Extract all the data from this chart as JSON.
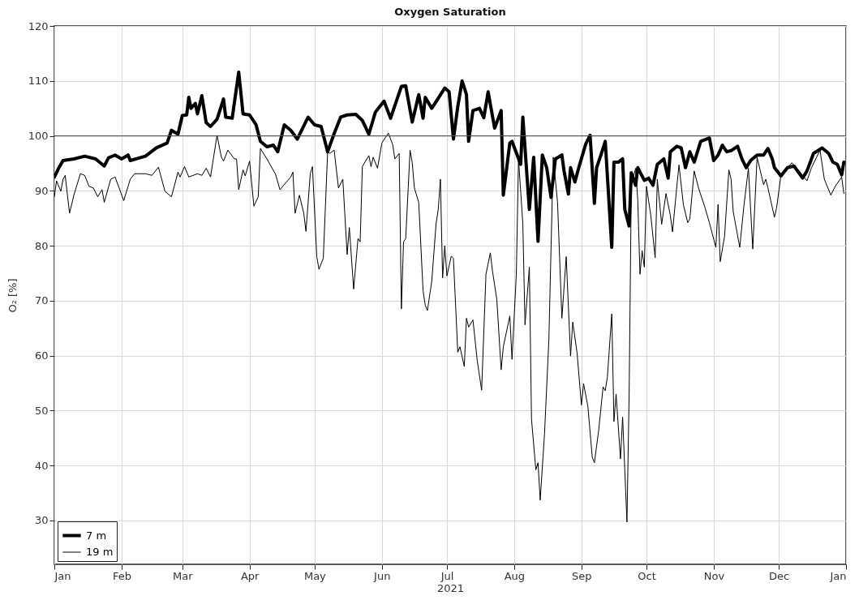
{
  "chart_data": {
    "type": "line",
    "title": "Oxygen Saturation",
    "xlabel": "2021",
    "ylabel": "O₂ [%]",
    "ylim": [
      22,
      120
    ],
    "yticks": [
      30,
      40,
      50,
      60,
      70,
      80,
      90,
      100,
      110,
      120
    ],
    "xlim": [
      "2021-01-01",
      "2022-01-01"
    ],
    "xticks": [
      {
        "value": "2021-01-01",
        "label": "Jan"
      },
      {
        "value": "2021-02-01",
        "label": "Feb"
      },
      {
        "value": "2021-03-01",
        "label": "Mar"
      },
      {
        "value": "2021-04-01",
        "label": "Apr"
      },
      {
        "value": "2021-05-01",
        "label": "May"
      },
      {
        "value": "2021-06-01",
        "label": "Jun"
      },
      {
        "value": "2021-07-01",
        "label": "Jul"
      },
      {
        "value": "2021-08-01",
        "label": "Aug"
      },
      {
        "value": "2021-09-01",
        "label": "Sep"
      },
      {
        "value": "2021-10-01",
        "label": "Oct"
      },
      {
        "value": "2021-11-01",
        "label": "Nov"
      },
      {
        "value": "2021-12-01",
        "label": "Dec"
      },
      {
        "value": "2022-01-01",
        "label": "Jan"
      }
    ],
    "grid": true,
    "legend": "bottom left",
    "line_style": "solid",
    "ref_lines": [
      {
        "axis": "y",
        "value": 100,
        "color": "#555555"
      }
    ],
    "series": [
      {
        "name": "7 m",
        "color": "#000000",
        "x": [
          "2021-01-01",
          "2021-01-03",
          "2021-01-05",
          "2021-01-10",
          "2021-01-15",
          "2021-01-20",
          "2021-01-24",
          "2021-01-26",
          "2021-01-29",
          "2021-02-01",
          "2021-02-04",
          "2021-02-05",
          "2021-02-12",
          "2021-02-17",
          "2021-02-22",
          "2021-02-24",
          "2021-02-27",
          "2021-03-01",
          "2021-03-03",
          "2021-03-04",
          "2021-03-05",
          "2021-03-07",
          "2021-03-08",
          "2021-03-10",
          "2021-03-12",
          "2021-03-14",
          "2021-03-17",
          "2021-03-20",
          "2021-03-21",
          "2021-03-24",
          "2021-03-27",
          "2021-03-29",
          "2021-04-01",
          "2021-04-04",
          "2021-04-06",
          "2021-04-09",
          "2021-04-12",
          "2021-04-14",
          "2021-04-17",
          "2021-04-20",
          "2021-04-23",
          "2021-04-28",
          "2021-05-01",
          "2021-05-04",
          "2021-05-07",
          "2021-05-10",
          "2021-05-13",
          "2021-05-16",
          "2021-05-20",
          "2021-05-23",
          "2021-05-26",
          "2021-05-29",
          "2021-05-31",
          "2021-06-02",
          "2021-06-05",
          "2021-06-10",
          "2021-06-12",
          "2021-06-15",
          "2021-06-18",
          "2021-06-20",
          "2021-06-21",
          "2021-06-24",
          "2021-06-30",
          "2021-07-02",
          "2021-07-04",
          "2021-07-06",
          "2021-07-08",
          "2021-07-10",
          "2021-07-11",
          "2021-07-13",
          "2021-07-16",
          "2021-07-18",
          "2021-07-20",
          "2021-07-23",
          "2021-07-26",
          "2021-07-27",
          "2021-07-30",
          "2021-07-31",
          "2021-08-04",
          "2021-08-05",
          "2021-08-08",
          "2021-08-10",
          "2021-08-12",
          "2021-08-14",
          "2021-08-16",
          "2021-08-18",
          "2021-08-20",
          "2021-08-23",
          "2021-08-24",
          "2021-08-26",
          "2021-08-27",
          "2021-08-29",
          "2021-08-31",
          "2021-09-03",
          "2021-09-05",
          "2021-09-07",
          "2021-09-08",
          "2021-09-10",
          "2021-09-12",
          "2021-09-15",
          "2021-09-16",
          "2021-09-18",
          "2021-09-20",
          "2021-09-21",
          "2021-09-23",
          "2021-09-24",
          "2021-09-26",
          "2021-09-27",
          "2021-09-30",
          "2021-10-02",
          "2021-10-04",
          "2021-10-06",
          "2021-10-09",
          "2021-10-11",
          "2021-10-12",
          "2021-10-15",
          "2021-10-17",
          "2021-10-19",
          "2021-10-21",
          "2021-10-23",
          "2021-10-26",
          "2021-10-30",
          "2021-11-01",
          "2021-11-03",
          "2021-11-05",
          "2021-11-07",
          "2021-11-09",
          "2021-11-12",
          "2021-11-14",
          "2021-11-16",
          "2021-11-18",
          "2021-11-21",
          "2021-11-24",
          "2021-11-26",
          "2021-11-28",
          "2021-11-29",
          "2021-12-02",
          "2021-12-05",
          "2021-12-08",
          "2021-12-12",
          "2021-12-14",
          "2021-12-17",
          "2021-12-21",
          "2021-12-24",
          "2021-12-26",
          "2021-12-28",
          "2021-12-30",
          "2021-12-31"
        ],
        "values": [
          92.5,
          94.1,
          95.5,
          95.8,
          96.3,
          95.8,
          94.5,
          96,
          96.5,
          95.8,
          96.5,
          95.5,
          96.3,
          97.8,
          98.7,
          101,
          100.3,
          103.7,
          103.8,
          107,
          105,
          105.9,
          104,
          107.3,
          102.4,
          101.7,
          103,
          106.7,
          103.4,
          103.2,
          111.6,
          104,
          103.8,
          102,
          99,
          98,
          98.3,
          97.1,
          102,
          101,
          99.4,
          103.4,
          102,
          101.7,
          97.1,
          100.4,
          103.4,
          103.8,
          103.9,
          102.8,
          100.3,
          104.3,
          105.3,
          106.3,
          103.2,
          109,
          109.1,
          102.5,
          107.5,
          103.2,
          107,
          105,
          108.7,
          108,
          99.4,
          105.3,
          110,
          107.5,
          99,
          104.6,
          105,
          103.3,
          108,
          101.4,
          104.6,
          89.2,
          98.7,
          99,
          94.8,
          103.4,
          86.6,
          96.1,
          80.8,
          96.5,
          94.2,
          88.8,
          95.8,
          96.5,
          93.6,
          89.4,
          94.2,
          91.6,
          94.5,
          98.5,
          100.1,
          87.7,
          94.2,
          96.5,
          99,
          79.7,
          95.2,
          95.2,
          95.8,
          86.6,
          83.6,
          93.3,
          91,
          94.2,
          91.9,
          92.3,
          91,
          94.8,
          95.8,
          92.3,
          97.1,
          98.1,
          97.8,
          94.2,
          97.1,
          95.2,
          99,
          99.6,
          95.5,
          96.5,
          98.3,
          97.1,
          97.3,
          98.1,
          95.8,
          94.2,
          95.5,
          96.5,
          96.5,
          97.7,
          95.8,
          94.2,
          92.7,
          94.2,
          94.5,
          92.3,
          93.6,
          96.8,
          97.8,
          96.8,
          95.2,
          94.8,
          92.9,
          95.2
        ]
      },
      {
        "name": "19 m",
        "color": "#000000",
        "x": [
          "2021-01-01",
          "2021-01-02",
          "2021-01-04",
          "2021-01-05",
          "2021-01-06",
          "2021-01-08",
          "2021-01-10",
          "2021-01-13",
          "2021-01-15",
          "2021-01-17",
          "2021-01-19",
          "2021-01-21",
          "2021-01-23",
          "2021-01-24",
          "2021-01-27",
          "2021-01-29",
          "2021-02-02",
          "2021-02-05",
          "2021-02-07",
          "2021-02-12",
          "2021-02-15",
          "2021-02-18",
          "2021-02-21",
          "2021-02-24",
          "2021-02-27",
          "2021-02-28",
          "2021-03-02",
          "2021-03-04",
          "2021-03-08",
          "2021-03-10",
          "2021-03-12",
          "2021-03-14",
          "2021-03-17",
          "2021-03-19",
          "2021-03-20",
          "2021-03-22",
          "2021-03-25",
          "2021-03-26",
          "2021-03-27",
          "2021-03-29",
          "2021-03-30",
          "2021-04-01",
          "2021-04-03",
          "2021-04-05",
          "2021-04-06",
          "2021-04-09",
          "2021-04-13",
          "2021-04-15",
          "2021-04-20",
          "2021-04-21",
          "2021-04-22",
          "2021-04-24",
          "2021-04-26",
          "2021-04-27",
          "2021-04-29",
          "2021-04-30",
          "2021-05-02",
          "2021-05-03",
          "2021-05-05",
          "2021-05-07",
          "2021-05-08",
          "2021-05-10",
          "2021-05-12",
          "2021-05-14",
          "2021-05-16",
          "2021-05-17",
          "2021-05-19",
          "2021-05-21",
          "2021-05-22",
          "2021-05-23",
          "2021-05-26",
          "2021-05-27",
          "2021-05-28",
          "2021-05-30",
          "2021-06-01",
          "2021-06-04",
          "2021-06-06",
          "2021-06-07",
          "2021-06-09",
          "2021-06-10",
          "2021-06-11",
          "2021-06-12",
          "2021-06-14",
          "2021-06-15",
          "2021-06-16",
          "2021-06-18",
          "2021-06-20",
          "2021-06-21",
          "2021-06-22",
          "2021-06-24",
          "2021-06-26",
          "2021-06-27",
          "2021-06-28",
          "2021-06-29",
          "2021-06-30",
          "2021-07-01",
          "2021-07-03",
          "2021-07-04",
          "2021-07-06",
          "2021-07-07",
          "2021-07-09",
          "2021-07-10",
          "2021-07-11",
          "2021-07-13",
          "2021-07-15",
          "2021-07-17",
          "2021-07-19",
          "2021-07-21",
          "2021-07-22",
          "2021-07-24",
          "2021-07-26",
          "2021-07-27",
          "2021-07-30",
          "2021-07-31",
          "2021-08-02",
          "2021-08-03",
          "2021-08-05",
          "2021-08-06",
          "2021-08-08",
          "2021-08-09",
          "2021-08-11",
          "2021-08-12",
          "2021-08-13",
          "2021-08-15",
          "2021-08-17",
          "2021-08-19",
          "2021-08-21",
          "2021-08-23",
          "2021-08-25",
          "2021-08-27",
          "2021-08-28",
          "2021-08-30",
          "2021-09-01",
          "2021-09-02",
          "2021-09-04",
          "2021-09-06",
          "2021-09-07",
          "2021-09-09",
          "2021-09-11",
          "2021-09-12",
          "2021-09-13",
          "2021-09-15",
          "2021-09-16",
          "2021-09-17",
          "2021-09-19",
          "2021-09-20",
          "2021-09-22",
          "2021-09-23",
          "2021-09-24",
          "2021-09-26",
          "2021-09-27",
          "2021-09-28",
          "2021-09-29",
          "2021-09-30",
          "2021-10-01",
          "2021-10-03",
          "2021-10-05",
          "2021-10-06",
          "2021-10-08",
          "2021-10-10",
          "2021-10-12",
          "2021-10-13",
          "2021-10-15",
          "2021-10-16",
          "2021-10-18",
          "2021-10-20",
          "2021-10-21",
          "2021-10-23",
          "2021-10-25",
          "2021-10-28",
          "2021-10-30",
          "2021-11-02",
          "2021-11-03",
          "2021-11-04",
          "2021-11-06",
          "2021-11-08",
          "2021-11-09",
          "2021-11-10",
          "2021-11-13",
          "2021-11-15",
          "2021-11-17",
          "2021-11-19",
          "2021-11-21",
          "2021-11-24",
          "2021-11-25",
          "2021-11-26",
          "2021-11-29",
          "2021-11-30",
          "2021-12-02",
          "2021-12-03",
          "2021-12-07",
          "2021-12-10",
          "2021-12-14",
          "2021-12-16",
          "2021-12-20",
          "2021-12-22",
          "2021-12-25",
          "2021-12-27",
          "2021-12-30",
          "2021-12-31"
        ],
        "values": [
          88.9,
          91.8,
          89.9,
          92.1,
          92.8,
          85.9,
          89.2,
          93.1,
          92.8,
          90.8,
          90.5,
          88.9,
          90.2,
          87.9,
          92.1,
          92.5,
          88.2,
          92.1,
          93.1,
          93.1,
          92.8,
          94.3,
          89.9,
          88.9,
          93.4,
          92.5,
          94.4,
          92.5,
          93.1,
          92.8,
          94.1,
          92.5,
          100.1,
          96.1,
          95.4,
          97.4,
          95.8,
          95.8,
          90.2,
          93.8,
          92.7,
          95.4,
          87.2,
          88.9,
          97.7,
          95.8,
          93,
          90.2,
          92.5,
          93.4,
          85.9,
          89.2,
          85.9,
          82.6,
          93.1,
          94.4,
          78,
          75.7,
          77.7,
          97.1,
          96.8,
          97.4,
          90.5,
          92.1,
          78.4,
          83.3,
          72.1,
          81.3,
          80.7,
          94.4,
          96.4,
          94.4,
          96.1,
          94.1,
          98.7,
          100.5,
          98.4,
          95.8,
          96.8,
          68.5,
          80.7,
          81.3,
          97.4,
          95.1,
          90.5,
          87.9,
          71.8,
          69.2,
          68.2,
          73.5,
          84,
          86.6,
          92.1,
          74.1,
          80,
          74.5,
          78.1,
          77.7,
          60.6,
          61.6,
          58,
          66.8,
          65.2,
          66.5,
          59,
          53.7,
          74.8,
          78.7,
          75.4,
          70.2,
          57.4,
          61.6,
          67.2,
          59.3,
          74.8,
          95.8,
          84,
          65.6,
          76.1,
          48.4,
          39.2,
          40.5,
          33.7,
          45.8,
          62.9,
          96.1,
          87.9,
          66.8,
          78,
          59.9,
          66.1,
          60.5,
          51,
          54.9,
          50.7,
          41.5,
          40.5,
          46.5,
          54.3,
          53.6,
          56.2,
          67.6,
          48,
          53,
          41.2,
          48.8,
          29.7,
          52.7,
          90.8,
          94.1,
          88.2,
          74.8,
          79.1,
          76.1,
          90.8,
          85.5,
          77.8,
          92.1,
          83.9,
          89.5,
          85.5,
          82.5,
          90.8,
          94.7,
          87.5,
          84.2,
          84.9,
          93.6,
          90.5,
          86.9,
          84.2,
          79.7,
          87.5,
          77.1,
          81.7,
          93.8,
          92.1,
          86.2,
          79.7,
          87.5,
          94.1,
          79.4,
          96.1,
          91.1,
          92.1,
          90.5,
          85.2,
          86.9,
          92.8,
          93.1,
          95.1,
          93.8,
          91.8,
          94.1,
          97.4,
          92.1,
          89.2,
          90.8,
          92.5,
          89.5
        ]
      }
    ]
  }
}
